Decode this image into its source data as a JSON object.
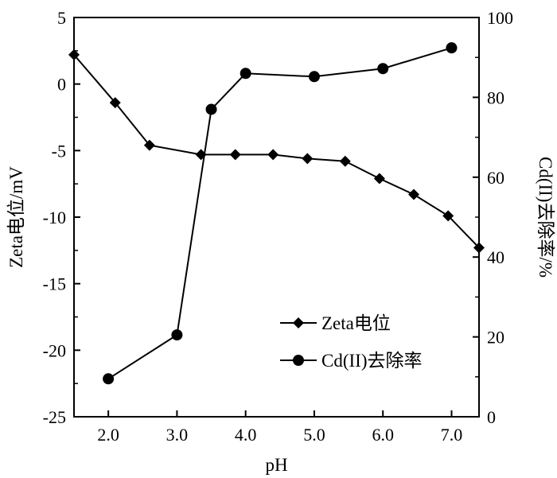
{
  "chart_data": {
    "type": "line",
    "title": "",
    "xlabel": "pH",
    "ylabel_left": "Zeta电位/mV",
    "ylabel_right": "Cd(II)去除率/%",
    "xlim": [
      1.5,
      7.4
    ],
    "ylim_left": [
      -25,
      5
    ],
    "ylim_right": [
      0,
      100
    ],
    "x_ticks": [
      2.0,
      3.0,
      4.0,
      5.0,
      6.0,
      7.0
    ],
    "x_tick_labels": [
      "2.0",
      "3.0",
      "4.0",
      "5.0",
      "6.0",
      "7.0"
    ],
    "y_left_ticks": [
      5,
      0,
      -5,
      -10,
      -15,
      -20,
      -25
    ],
    "y_left_tick_labels": [
      "5",
      "0",
      "-5",
      "-10",
      "-15",
      "-20",
      "-25"
    ],
    "y_right_ticks": [
      100,
      80,
      60,
      40,
      20,
      0
    ],
    "y_right_tick_labels": [
      "100",
      "80",
      "60",
      "40",
      "20",
      "0"
    ],
    "grid": false,
    "legend_position": "lower-right",
    "series": [
      {
        "name": "Zeta电位",
        "marker": "diamond",
        "axis": "left",
        "color": "#000000",
        "x": [
          1.5,
          2.1,
          2.6,
          3.35,
          3.85,
          4.4,
          4.9,
          5.45,
          5.95,
          6.45,
          6.95,
          7.4
        ],
        "values": [
          2.2,
          -1.4,
          -4.6,
          -5.3,
          -5.3,
          -5.3,
          -5.6,
          -5.8,
          -7.1,
          -8.3,
          -9.9,
          -12.3
        ]
      },
      {
        "name": "Cd(II)去除率",
        "marker": "circle",
        "axis": "right",
        "color": "#000000",
        "x": [
          2.0,
          3.0,
          3.5,
          4.0,
          5.0,
          6.0,
          7.0
        ],
        "values": [
          9.5,
          20.5,
          77.0,
          86.0,
          85.2,
          87.2,
          92.4
        ]
      }
    ]
  }
}
